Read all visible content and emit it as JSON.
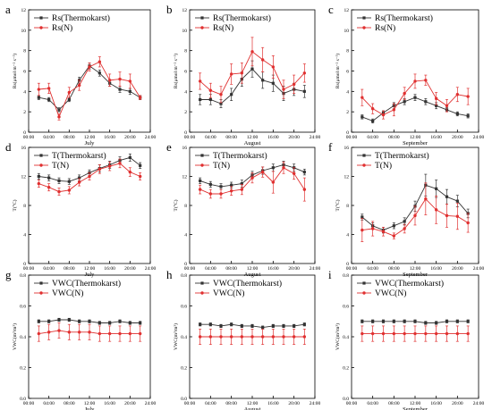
{
  "colors": {
    "series_a": "#333333",
    "series_b": "#e03030",
    "axis": "#000000"
  },
  "chart_data": [
    {
      "panel_label": "a",
      "type": "line",
      "xlabel": "July",
      "ylabel": "Rs(μmol m⁻² s⁻¹)",
      "xlim": [
        "00:00",
        "24:00"
      ],
      "ylim": [
        0,
        12
      ],
      "xticks": [
        "00:00",
        "04:00",
        "08:00",
        "12:00",
        "16:00",
        "20:00",
        "24:00"
      ],
      "yticks": [
        "0",
        "2",
        "4",
        "6",
        "8",
        "10",
        "12"
      ],
      "x": [
        "02:00",
        "04:00",
        "06:00",
        "08:00",
        "10:00",
        "12:00",
        "14:00",
        "16:00",
        "18:00",
        "20:00",
        "22:00"
      ],
      "series": [
        {
          "name": "Rs(Thermokarst)",
          "values": [
            3.4,
            3.2,
            2.2,
            3.2,
            5.1,
            6.5,
            5.8,
            4.8,
            4.2,
            4.0,
            3.4
          ],
          "errors": [
            0.2,
            0.2,
            0.2,
            0.2,
            0.3,
            0.3,
            0.3,
            0.3,
            0.3,
            0.3,
            0.2
          ]
        },
        {
          "name": "Rs(N)",
          "values": [
            4.2,
            4.3,
            1.5,
            3.9,
            4.6,
            6.4,
            6.9,
            5.1,
            5.2,
            5.0,
            3.4
          ],
          "errors": [
            0.6,
            0.5,
            0.3,
            0.5,
            0.5,
            0.4,
            0.5,
            0.6,
            0.7,
            0.7,
            0.2
          ]
        }
      ]
    },
    {
      "panel_label": "b",
      "type": "line",
      "xlabel": "August",
      "ylabel": "Rs(μmol m⁻² s⁻¹)",
      "xlim": [
        "00:00",
        "24:00"
      ],
      "ylim": [
        0,
        12
      ],
      "xticks": [
        "00:00",
        "04:00",
        "08:00",
        "12:00",
        "16:00",
        "20:00",
        "24:00"
      ],
      "yticks": [
        "0",
        "2",
        "4",
        "6",
        "8",
        "10",
        "12"
      ],
      "x": [
        "02:00",
        "04:00",
        "06:00",
        "08:00",
        "10:00",
        "12:00",
        "14:00",
        "16:00",
        "18:00",
        "20:00",
        "22:00"
      ],
      "series": [
        {
          "name": "Rs(Thermokarst)",
          "values": [
            3.2,
            3.2,
            2.8,
            3.7,
            5.2,
            6.2,
            5.1,
            4.8,
            3.8,
            4.2,
            4.0
          ],
          "errors": [
            0.5,
            0.5,
            0.4,
            0.6,
            0.7,
            0.8,
            0.8,
            0.8,
            0.7,
            0.6,
            0.6
          ]
        },
        {
          "name": "Rs(N)",
          "values": [
            5.0,
            4.1,
            3.7,
            5.7,
            5.8,
            7.9,
            7.1,
            6.4,
            4.2,
            4.7,
            5.8
          ],
          "errors": [
            0.8,
            0.7,
            0.8,
            1.0,
            1.0,
            1.4,
            1.2,
            1.1,
            0.9,
            0.9,
            0.9
          ]
        }
      ]
    },
    {
      "panel_label": "c",
      "type": "line",
      "xlabel": "September",
      "ylabel": "Rs(μmol m⁻² s⁻¹)",
      "xlim": [
        "00:00",
        "24:00"
      ],
      "ylim": [
        0,
        12
      ],
      "xticks": [
        "00:00",
        "04:00",
        "08:00",
        "12:00",
        "16:00",
        "20:00",
        "24:00"
      ],
      "yticks": [
        "0",
        "2",
        "4",
        "6",
        "8",
        "10",
        "12"
      ],
      "x": [
        "02:00",
        "04:00",
        "06:00",
        "08:00",
        "10:00",
        "12:00",
        "14:00",
        "16:00",
        "18:00",
        "20:00",
        "22:00"
      ],
      "series": [
        {
          "name": "Rs(Thermokarst)",
          "values": [
            1.5,
            1.1,
            1.9,
            2.6,
            3.0,
            3.4,
            3.0,
            2.6,
            2.2,
            1.8,
            1.6
          ],
          "errors": [
            0.2,
            0.2,
            0.2,
            0.3,
            0.3,
            0.3,
            0.3,
            0.3,
            0.2,
            0.2,
            0.2
          ]
        },
        {
          "name": "Rs(N)",
          "values": [
            3.4,
            2.3,
            1.7,
            2.2,
            3.8,
            5.0,
            5.1,
            3.3,
            2.6,
            3.7,
            3.5
          ],
          "errors": [
            0.8,
            0.5,
            0.4,
            0.6,
            0.6,
            0.7,
            0.5,
            0.6,
            0.6,
            0.7,
            0.8
          ]
        }
      ]
    },
    {
      "panel_label": "d",
      "type": "line",
      "xlabel": "July",
      "ylabel": "T(°C)",
      "xlim": [
        "00:00",
        "24:00"
      ],
      "ylim": [
        0,
        16
      ],
      "xticks": [
        "00:00",
        "04:00",
        "08:00",
        "12:00",
        "16:00",
        "20:00",
        "24:00"
      ],
      "yticks": [
        "0",
        "4",
        "8",
        "12",
        "16"
      ],
      "x": [
        "02:00",
        "04:00",
        "06:00",
        "08:00",
        "10:00",
        "12:00",
        "14:00",
        "16:00",
        "18:00",
        "20:00",
        "22:00"
      ],
      "series": [
        {
          "name": "T(Thermokarst)",
          "values": [
            12.0,
            11.8,
            11.4,
            11.3,
            11.8,
            12.5,
            13.1,
            13.6,
            14.2,
            14.6,
            13.5
          ],
          "errors": [
            0.4,
            0.4,
            0.4,
            0.4,
            0.4,
            0.4,
            0.5,
            0.5,
            0.5,
            0.5,
            0.4
          ]
        },
        {
          "name": "T(N)",
          "values": [
            11.0,
            10.5,
            9.9,
            10.1,
            11.2,
            12.0,
            13.0,
            13.4,
            13.8,
            12.6,
            12.0
          ],
          "errors": [
            0.5,
            0.5,
            0.5,
            0.5,
            0.5,
            0.5,
            0.6,
            0.6,
            0.6,
            0.6,
            0.5
          ]
        }
      ]
    },
    {
      "panel_label": "e",
      "type": "line",
      "xlabel": "August",
      "ylabel": "T(°C)",
      "xlim": [
        "00:00",
        "24:00"
      ],
      "ylim": [
        0,
        16
      ],
      "xticks": [
        "00:00",
        "04:00",
        "08:00",
        "12:00",
        "16:00",
        "20:00",
        "24:00"
      ],
      "yticks": [
        "0",
        "4",
        "8",
        "12",
        "16"
      ],
      "x": [
        "02:00",
        "04:00",
        "06:00",
        "08:00",
        "10:00",
        "12:00",
        "14:00",
        "16:00",
        "18:00",
        "20:00",
        "22:00"
      ],
      "series": [
        {
          "name": "T(Thermokarst)",
          "values": [
            11.4,
            10.9,
            10.6,
            10.8,
            11.0,
            12.2,
            12.8,
            13.2,
            13.6,
            13.2,
            12.6
          ],
          "errors": [
            0.4,
            0.4,
            0.4,
            0.4,
            0.5,
            0.5,
            0.5,
            0.5,
            0.5,
            0.5,
            0.4
          ]
        },
        {
          "name": "T(N)",
          "values": [
            10.2,
            9.6,
            9.6,
            10.0,
            10.2,
            11.8,
            12.6,
            11.2,
            13.2,
            12.4,
            10.2
          ],
          "errors": [
            0.6,
            0.6,
            0.6,
            0.6,
            0.7,
            0.7,
            0.7,
            1.5,
            0.8,
            0.8,
            1.6
          ]
        }
      ]
    },
    {
      "panel_label": "f",
      "type": "line",
      "xlabel": "September",
      "ylabel": "T(°C)",
      "xlim": [
        "00:00",
        "24:00"
      ],
      "ylim": [
        0,
        16
      ],
      "xticks": [
        "00:00",
        "04:00",
        "08:00",
        "12:00",
        "16:00",
        "20:00",
        "24:00"
      ],
      "yticks": [
        "0",
        "4",
        "8",
        "12",
        "16"
      ],
      "x": [
        "02:00",
        "04:00",
        "06:00",
        "08:00",
        "10:00",
        "12:00",
        "14:00",
        "16:00",
        "18:00",
        "20:00",
        "22:00"
      ],
      "series": [
        {
          "name": "T(Thermokarst)",
          "values": [
            6.4,
            5.2,
            4.6,
            5.2,
            5.8,
            7.9,
            10.8,
            10.3,
            9.2,
            8.6,
            6.9
          ],
          "errors": [
            0.4,
            0.4,
            0.4,
            0.4,
            0.5,
            0.7,
            1.5,
            1.2,
            1.0,
            0.8,
            0.6
          ]
        },
        {
          "name": "T(N)",
          "values": [
            4.6,
            4.8,
            4.4,
            3.8,
            4.8,
            6.6,
            8.9,
            7.4,
            6.6,
            6.5,
            5.6
          ],
          "errors": [
            1.6,
            1.0,
            0.6,
            0.4,
            0.6,
            1.3,
            2.2,
            1.9,
            1.6,
            1.8,
            1.3
          ]
        }
      ]
    },
    {
      "panel_label": "g",
      "type": "line",
      "xlabel": "July",
      "ylabel": "VWC(m³/m³)",
      "xlim": [
        "00:00",
        "24:00"
      ],
      "ylim": [
        0.0,
        0.8
      ],
      "xticks": [
        "00:00",
        "04:00",
        "08:00",
        "12:00",
        "16:00",
        "20:00",
        "24:00"
      ],
      "yticks": [
        "0.0",
        "0.2",
        "0.4",
        "0.6",
        "0.8"
      ],
      "x": [
        "02:00",
        "04:00",
        "06:00",
        "08:00",
        "10:00",
        "12:00",
        "14:00",
        "16:00",
        "18:00",
        "20:00",
        "22:00"
      ],
      "series": [
        {
          "name": "VWC(Thermokarst)",
          "values": [
            0.5,
            0.5,
            0.51,
            0.51,
            0.5,
            0.5,
            0.49,
            0.49,
            0.5,
            0.49,
            0.49
          ],
          "errors": [
            0.01,
            0.01,
            0.01,
            0.01,
            0.01,
            0.01,
            0.01,
            0.01,
            0.01,
            0.01,
            0.01
          ]
        },
        {
          "name": "VWC(N)",
          "values": [
            0.42,
            0.43,
            0.44,
            0.43,
            0.43,
            0.43,
            0.42,
            0.42,
            0.42,
            0.42,
            0.42
          ],
          "errors": [
            0.05,
            0.05,
            0.05,
            0.05,
            0.05,
            0.05,
            0.05,
            0.05,
            0.05,
            0.05,
            0.05
          ]
        }
      ]
    },
    {
      "panel_label": "h",
      "type": "line",
      "xlabel": "August",
      "ylabel": "VWC(m³/m³)",
      "xlim": [
        "00:00",
        "24:00"
      ],
      "ylim": [
        0.0,
        0.8
      ],
      "xticks": [
        "00:00",
        "04:00",
        "08:00",
        "12:00",
        "16:00",
        "20:00",
        "24:00"
      ],
      "yticks": [
        "0.0",
        "0.2",
        "0.4",
        "0.6",
        "0.8"
      ],
      "x": [
        "02:00",
        "04:00",
        "06:00",
        "08:00",
        "10:00",
        "12:00",
        "14:00",
        "16:00",
        "18:00",
        "20:00",
        "22:00"
      ],
      "series": [
        {
          "name": "VWC(Thermokarst)",
          "values": [
            0.48,
            0.48,
            0.47,
            0.48,
            0.47,
            0.47,
            0.46,
            0.47,
            0.47,
            0.47,
            0.48
          ],
          "errors": [
            0.01,
            0.01,
            0.01,
            0.01,
            0.01,
            0.01,
            0.01,
            0.01,
            0.01,
            0.01,
            0.01
          ]
        },
        {
          "name": "VWC(N)",
          "values": [
            0.4,
            0.4,
            0.4,
            0.4,
            0.4,
            0.4,
            0.4,
            0.4,
            0.4,
            0.4,
            0.4
          ],
          "errors": [
            0.05,
            0.05,
            0.05,
            0.05,
            0.05,
            0.05,
            0.05,
            0.05,
            0.05,
            0.05,
            0.05
          ]
        }
      ]
    },
    {
      "panel_label": "i",
      "type": "line",
      "xlabel": "September",
      "ylabel": "VWC(m³/m³)",
      "xlim": [
        "00:00",
        "24:00"
      ],
      "ylim": [
        0.0,
        0.8
      ],
      "xticks": [
        "00:00",
        "04:00",
        "08:00",
        "12:00",
        "16:00",
        "20:00",
        "24:00"
      ],
      "yticks": [
        "0.0",
        "0.2",
        "0.4",
        "0.6",
        "0.8"
      ],
      "x": [
        "02:00",
        "04:00",
        "06:00",
        "08:00",
        "10:00",
        "12:00",
        "14:00",
        "16:00",
        "18:00",
        "20:00",
        "22:00"
      ],
      "series": [
        {
          "name": "VWC(Thermokarst)",
          "values": [
            0.5,
            0.5,
            0.5,
            0.5,
            0.5,
            0.5,
            0.49,
            0.49,
            0.5,
            0.5,
            0.5
          ],
          "errors": [
            0.01,
            0.01,
            0.01,
            0.01,
            0.01,
            0.01,
            0.01,
            0.01,
            0.01,
            0.01,
            0.01
          ]
        },
        {
          "name": "VWC(N)",
          "values": [
            0.42,
            0.42,
            0.42,
            0.42,
            0.42,
            0.42,
            0.42,
            0.42,
            0.42,
            0.42,
            0.42
          ],
          "errors": [
            0.05,
            0.05,
            0.05,
            0.05,
            0.05,
            0.05,
            0.05,
            0.05,
            0.05,
            0.05,
            0.05
          ]
        }
      ]
    }
  ]
}
